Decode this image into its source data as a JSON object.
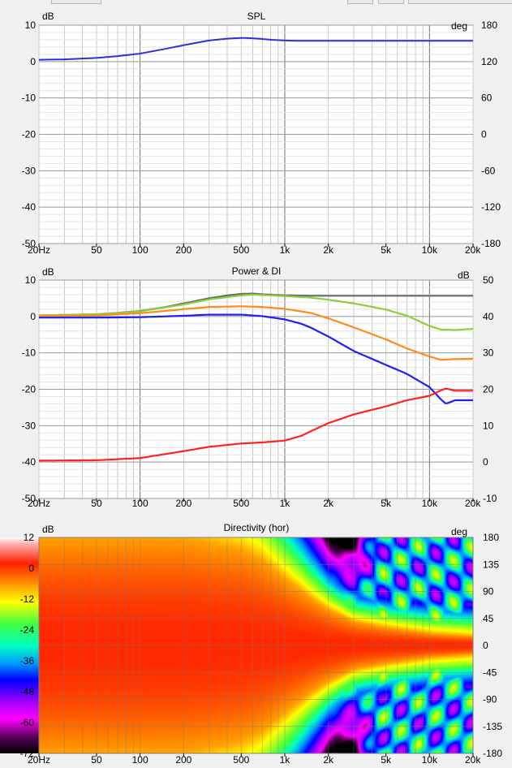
{
  "x_ticks": [
    "20Hz",
    "50",
    "100",
    "200",
    "500",
    "1k",
    "2k",
    "5k",
    "10k",
    "20k"
  ],
  "x_tick_freqs": [
    20,
    50,
    100,
    200,
    500,
    1000,
    2000,
    5000,
    10000,
    20000
  ],
  "spl": {
    "title": "SPL",
    "left_unit": "dB",
    "right_unit": "deg",
    "left_ticks": [
      "10",
      "0",
      "-10",
      "-20",
      "-30",
      "-40",
      "-50"
    ],
    "right_ticks": [
      "180",
      "120",
      "60",
      "0",
      "-60",
      "-120",
      "-180"
    ],
    "line_color": "#2f2fd8"
  },
  "power_di": {
    "title": "Power & DI",
    "left_unit": "dB",
    "right_unit": "dB",
    "left_ticks": [
      "10",
      "0",
      "-10",
      "-20",
      "-30",
      "-40",
      "-50"
    ],
    "right_ticks": [
      "50",
      "40",
      "30",
      "20",
      "10",
      "0",
      "-10"
    ]
  },
  "directivity": {
    "title": "Directivity (hor)",
    "left_unit": "dB",
    "right_unit": "deg",
    "color_ticks": [
      "12",
      "0",
      "-12",
      "-24",
      "-36",
      "-48",
      "-60",
      "-72"
    ],
    "right_ticks": [
      "180",
      "135",
      "90",
      "45",
      "0",
      "-45",
      "-90",
      "-135",
      "-180"
    ]
  },
  "chart_data": [
    {
      "type": "line",
      "title": "SPL",
      "x_scale": "log",
      "xlim": [
        20,
        20000
      ],
      "ylim": [
        -50,
        10
      ],
      "y2lim": [
        -180,
        180
      ],
      "series": [
        {
          "color": "#2f2fd8",
          "x": [
            20,
            30,
            50,
            70,
            100,
            150,
            200,
            300,
            400,
            500,
            600,
            700,
            800,
            1000,
            1200,
            2000,
            5000,
            10000,
            20000
          ],
          "values": [
            0.5,
            0.6,
            1.0,
            1.5,
            2.2,
            3.5,
            4.5,
            5.8,
            6.3,
            6.5,
            6.4,
            6.2,
            6.0,
            5.8,
            5.7,
            5.7,
            5.7,
            5.7,
            5.7
          ]
        }
      ]
    },
    {
      "type": "line",
      "title": "Power & DI",
      "x_scale": "log",
      "xlim": [
        20,
        20000
      ],
      "ylim": [
        -50,
        10
      ],
      "y2lim": [
        -10,
        50
      ],
      "series": [
        {
          "color": "#6a6a6a",
          "x": [
            20,
            50,
            70,
            100,
            150,
            200,
            300,
            400,
            500,
            600,
            700,
            1000,
            1500,
            2000,
            5000,
            10000,
            20000
          ],
          "values": [
            0.3,
            0.6,
            1.0,
            1.5,
            2.6,
            3.6,
            5.0,
            5.8,
            6.2,
            6.3,
            6.1,
            5.8,
            5.7,
            5.7,
            5.7,
            5.7,
            5.7
          ]
        },
        {
          "color": "#8ad03a",
          "x": [
            20,
            50,
            100,
            200,
            300,
            500,
            600,
            700,
            1000,
            1500,
            2000,
            3000,
            5000,
            7000,
            10000,
            12000,
            15000,
            20000
          ],
          "values": [
            0.3,
            0.6,
            1.4,
            3.3,
            4.7,
            5.8,
            6.0,
            5.9,
            5.6,
            5.2,
            4.6,
            3.6,
            1.9,
            0.2,
            -2.6,
            -3.6,
            -3.7,
            -3.4
          ]
        },
        {
          "color": "#ff8c1a",
          "x": [
            20,
            50,
            100,
            200,
            300,
            500,
            700,
            1000,
            1500,
            2000,
            3000,
            5000,
            7000,
            10000,
            12000,
            15000,
            20000
          ],
          "values": [
            0.1,
            0.3,
            0.9,
            2.0,
            2.6,
            2.8,
            2.6,
            2.1,
            1.0,
            -0.5,
            -3.0,
            -6.3,
            -8.8,
            -11.0,
            -11.9,
            -11.7,
            -11.6
          ]
        },
        {
          "color": "#1f1ff0",
          "x": [
            20,
            50,
            100,
            200,
            300,
            500,
            700,
            1000,
            1300,
            1500,
            2000,
            3000,
            5000,
            7000,
            10000,
            12000,
            13000,
            15000,
            20000
          ],
          "values": [
            -0.3,
            -0.3,
            -0.2,
            0.2,
            0.5,
            0.5,
            0.1,
            -0.8,
            -2.0,
            -3.0,
            -5.5,
            -9.5,
            -13.3,
            -15.8,
            -19.4,
            -22.8,
            -24.0,
            -23.0,
            -23.0
          ]
        },
        {
          "color": "#ff2222",
          "x": [
            20,
            50,
            100,
            200,
            300,
            500,
            700,
            1000,
            1300,
            1500,
            2000,
            3000,
            5000,
            7000,
            10000,
            12000,
            13000,
            15000,
            20000
          ],
          "values": [
            -39.6,
            -39.5,
            -38.9,
            -37.0,
            -35.8,
            -34.9,
            -34.6,
            -34.1,
            -32.8,
            -31.6,
            -29.3,
            -26.9,
            -24.7,
            -23.0,
            -21.8,
            -20.3,
            -19.8,
            -20.4,
            -20.4
          ]
        }
      ]
    },
    {
      "type": "heatmap",
      "title": "Directivity (hor)",
      "x_scale": "log",
      "xlim": [
        20,
        20000
      ],
      "ylim": [
        -180,
        180
      ],
      "color_range": [
        -72,
        12
      ],
      "beamwidth_half_angle_deg": {
        "freq": [
          20,
          100,
          200,
          300,
          500,
          700,
          1000,
          1500,
          2000,
          3000,
          5000,
          10000,
          20000
        ],
        "values": [
          180,
          180,
          178,
          170,
          160,
          142,
          112,
          80,
          60,
          40,
          30,
          20,
          15
        ]
      },
      "fan_zone_freq_range": [
        2000,
        20000
      ]
    }
  ]
}
